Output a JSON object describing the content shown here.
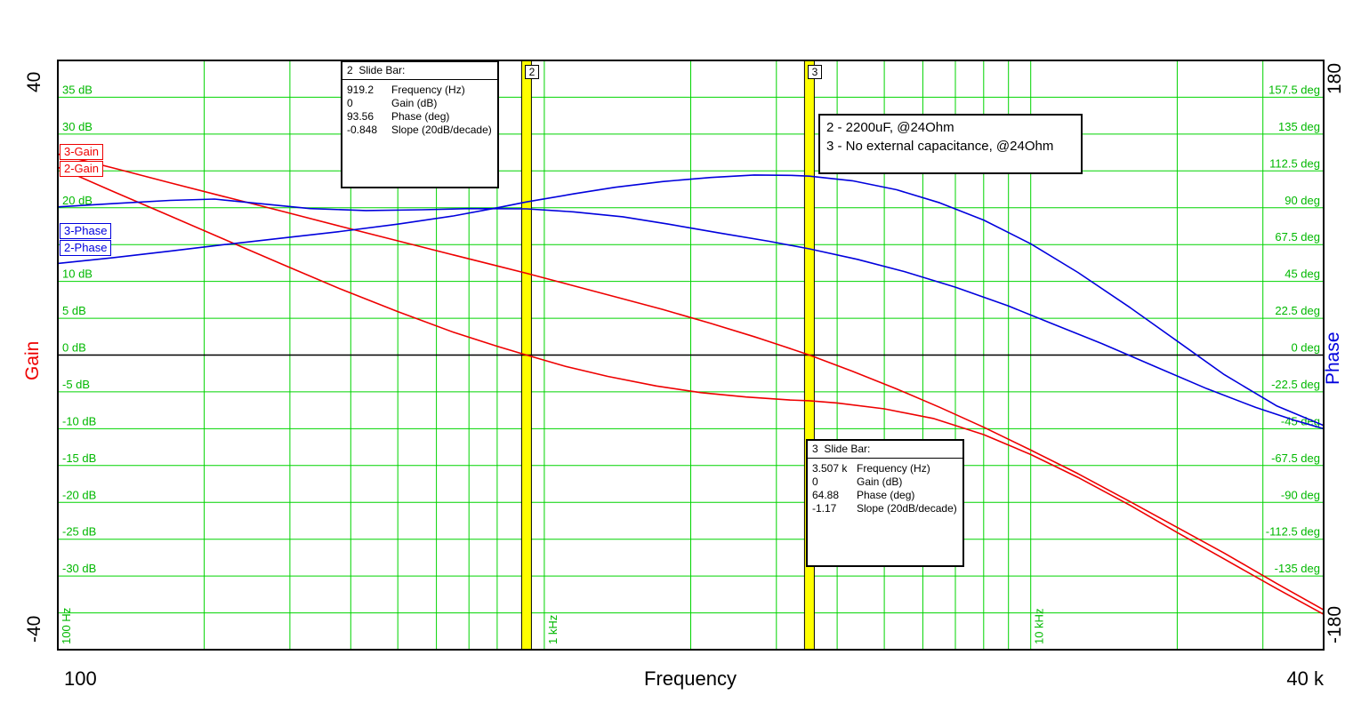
{
  "axes": {
    "gain_axis_label": "Gain",
    "phase_axis_label": "Phase",
    "freq_axis_label": "Frequency",
    "gain_max_label": "40",
    "gain_min_label": "-40",
    "phase_max_label": "180",
    "phase_min_label": "-180",
    "freq_left_label": "100",
    "freq_right_label": "40 k",
    "gain_ticks": [
      {
        "db": 35,
        "label": "35 dB"
      },
      {
        "db": 30,
        "label": "30 dB"
      },
      {
        "db": 20,
        "label": "20 dB"
      },
      {
        "db": 10,
        "label": "10 dB"
      },
      {
        "db": 5,
        "label": "5 dB"
      },
      {
        "db": 0,
        "label": "0 dB"
      },
      {
        "db": -5,
        "label": "-5 dB"
      },
      {
        "db": -10,
        "label": "-10 dB"
      },
      {
        "db": -15,
        "label": "-15 dB"
      },
      {
        "db": -20,
        "label": "-20 dB"
      },
      {
        "db": -25,
        "label": "-25 dB"
      },
      {
        "db": -30,
        "label": "-30 dB"
      }
    ],
    "phase_ticks": [
      {
        "deg": 157.5,
        "label": "157.5 deg"
      },
      {
        "deg": 135,
        "label": "135 deg"
      },
      {
        "deg": 112.5,
        "label": "112.5 deg"
      },
      {
        "deg": 90,
        "label": "90 deg"
      },
      {
        "deg": 67.5,
        "label": "67.5 deg"
      },
      {
        "deg": 45,
        "label": "45 deg"
      },
      {
        "deg": 22.5,
        "label": "22.5 deg"
      },
      {
        "deg": 0,
        "label": "0 deg"
      },
      {
        "deg": -22.5,
        "label": "-22.5 deg"
      },
      {
        "deg": -45,
        "label": "-45 deg"
      },
      {
        "deg": -67.5,
        "label": "-67.5 deg"
      },
      {
        "deg": -90,
        "label": "-90 deg"
      },
      {
        "deg": -112.5,
        "label": "-112.5 deg"
      },
      {
        "deg": -135,
        "label": "-135 deg"
      }
    ],
    "freq_vertical_labels": [
      {
        "hz": 100,
        "label": "100 Hz"
      },
      {
        "hz": 1000,
        "label": "1 kHz"
      },
      {
        "hz": 10000,
        "label": "10 kHz"
      }
    ]
  },
  "legend": {
    "lines": [
      "2 - 2200uF, @24Ohm",
      "3 - No external capacitance, @24Ohm"
    ]
  },
  "curve_labels": [
    {
      "text": "3-Gain"
    },
    {
      "text": "2-Gain"
    },
    {
      "text": "3-Phase"
    },
    {
      "text": "2-Phase"
    }
  ],
  "slide_bars": [
    {
      "id": "2",
      "frequency_hz": 919.2,
      "info": {
        "title": "2  Slide Bar:",
        "rows": [
          [
            "919.2",
            "Frequency (Hz)"
          ],
          [
            "0",
            "Gain (dB)"
          ],
          [
            "93.56",
            "Phase (deg)"
          ],
          [
            "-0.848",
            "Slope (20dB/decade)"
          ]
        ]
      }
    },
    {
      "id": "3",
      "frequency_hz": 3507,
      "info": {
        "title": "3  Slide Bar:",
        "rows": [
          [
            "3.507 k",
            "Frequency (Hz)"
          ],
          [
            "0",
            "Gain (dB)"
          ],
          [
            "64.88",
            "Phase (deg)"
          ],
          [
            "-1.17",
            "Slope (20dB/decade)"
          ]
        ]
      }
    }
  ],
  "colors": {
    "grid": "#00d400",
    "tick_text": "#00b800",
    "gain_curve": "#ee0000",
    "phase_curve": "#0000dd",
    "slide_bar": "#ffff00",
    "zero_line": "#000000"
  },
  "chart_data": {
    "type": "line",
    "title": "",
    "x_axis": {
      "label": "Frequency",
      "unit": "Hz",
      "scale": "log",
      "range": [
        100,
        40000
      ]
    },
    "y_left": {
      "label": "Gain",
      "unit": "dB",
      "range": [
        -40,
        40
      ]
    },
    "y_right": {
      "label": "Phase",
      "unit": "deg",
      "range": [
        -180,
        180
      ]
    },
    "grid": true,
    "series": [
      {
        "name": "2-Gain",
        "axis": "left",
        "color": "#ee0000",
        "points": [
          [
            100,
            25.5
          ],
          [
            130,
            22.2
          ],
          [
            170,
            18.9
          ],
          [
            220,
            15.7
          ],
          [
            290,
            12.3
          ],
          [
            380,
            9.0
          ],
          [
            500,
            5.9
          ],
          [
            650,
            3.1
          ],
          [
            800,
            1.2
          ],
          [
            919.2,
            0
          ],
          [
            1100,
            -1.5
          ],
          [
            1350,
            -2.9
          ],
          [
            1700,
            -4.2
          ],
          [
            2100,
            -5.1
          ],
          [
            2600,
            -5.7
          ],
          [
            3200,
            -6.1
          ],
          [
            3507,
            -6.2
          ],
          [
            4000,
            -6.5
          ],
          [
            5000,
            -7.3
          ],
          [
            6300,
            -8.6
          ],
          [
            8000,
            -10.8
          ],
          [
            10000,
            -13.5
          ],
          [
            12500,
            -16.6
          ],
          [
            16000,
            -20.4
          ],
          [
            20000,
            -24.1
          ],
          [
            25000,
            -27.7
          ],
          [
            32000,
            -31.7
          ],
          [
            40000,
            -35.2
          ]
        ]
      },
      {
        "name": "3-Gain",
        "axis": "left",
        "color": "#ee0000",
        "points": [
          [
            100,
            27.3
          ],
          [
            130,
            25.4
          ],
          [
            170,
            23.4
          ],
          [
            220,
            21.5
          ],
          [
            290,
            19.5
          ],
          [
            380,
            17.5
          ],
          [
            500,
            15.5
          ],
          [
            650,
            13.6
          ],
          [
            800,
            12.1
          ],
          [
            919.2,
            11.1
          ],
          [
            1150,
            9.4
          ],
          [
            1400,
            7.9
          ],
          [
            1750,
            6.2
          ],
          [
            2200,
            4.3
          ],
          [
            2700,
            2.5
          ],
          [
            3100,
            1.2
          ],
          [
            3507,
            0
          ],
          [
            4300,
            -2.2
          ],
          [
            5300,
            -4.6
          ],
          [
            6500,
            -7.1
          ],
          [
            8000,
            -9.8
          ],
          [
            10000,
            -12.9
          ],
          [
            12500,
            -16.1
          ],
          [
            16000,
            -19.9
          ],
          [
            20000,
            -23.4
          ],
          [
            25000,
            -26.9
          ],
          [
            32000,
            -31.0
          ],
          [
            40000,
            -34.6
          ]
        ]
      },
      {
        "name": "2-Phase",
        "axis": "right",
        "color": "#0000dd",
        "points": [
          [
            100,
            56
          ],
          [
            130,
            59.5
          ],
          [
            170,
            63.5
          ],
          [
            220,
            67.5
          ],
          [
            290,
            71.5
          ],
          [
            380,
            75.5
          ],
          [
            500,
            80
          ],
          [
            650,
            85
          ],
          [
            800,
            90
          ],
          [
            919.2,
            93.56
          ],
          [
            1150,
            98.5
          ],
          [
            1400,
            102.5
          ],
          [
            1750,
            106
          ],
          [
            2200,
            108.5
          ],
          [
            2700,
            110
          ],
          [
            3200,
            109.8
          ],
          [
            3507,
            109.3
          ],
          [
            4300,
            106.5
          ],
          [
            5300,
            101
          ],
          [
            6500,
            93
          ],
          [
            8000,
            82.5
          ],
          [
            10000,
            68
          ],
          [
            12500,
            50.5
          ],
          [
            16000,
            29
          ],
          [
            20000,
            8.5
          ],
          [
            25000,
            -12
          ],
          [
            32000,
            -31
          ],
          [
            40000,
            -43
          ]
        ]
      },
      {
        "name": "3-Phase",
        "axis": "right",
        "color": "#0000dd",
        "points": [
          [
            100,
            90.5
          ],
          [
            130,
            92.5
          ],
          [
            170,
            94.5
          ],
          [
            210,
            95.3
          ],
          [
            260,
            92.5
          ],
          [
            330,
            89.5
          ],
          [
            430,
            88.3
          ],
          [
            560,
            88.8
          ],
          [
            700,
            89.5
          ],
          [
            919.2,
            89.3
          ],
          [
            1150,
            87.5
          ],
          [
            1450,
            84.5
          ],
          [
            1800,
            80
          ],
          [
            2300,
            74.5
          ],
          [
            2900,
            69.5
          ],
          [
            3507,
            64.88
          ],
          [
            4400,
            58.5
          ],
          [
            5500,
            51
          ],
          [
            7000,
            41.5
          ],
          [
            9000,
            30
          ],
          [
            11000,
            19.5
          ],
          [
            14000,
            7
          ],
          [
            18000,
            -7
          ],
          [
            23000,
            -20.5
          ],
          [
            29000,
            -32
          ],
          [
            35000,
            -40
          ],
          [
            40000,
            -45
          ]
        ]
      }
    ]
  }
}
